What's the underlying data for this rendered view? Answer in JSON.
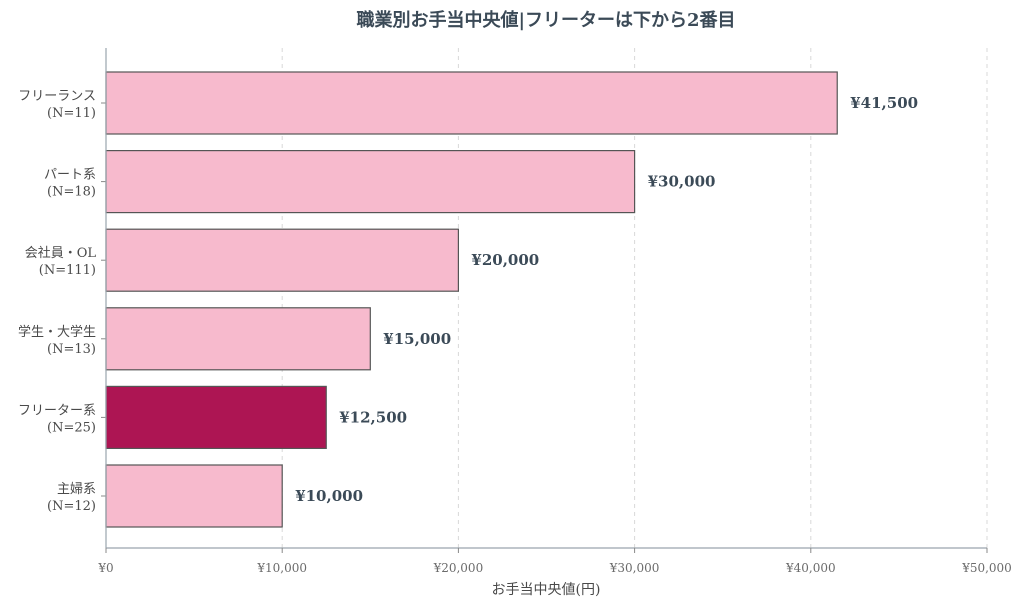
{
  "chart_data": {
    "type": "bar",
    "orientation": "horizontal",
    "title": "職業別お手当中央値|フリーターは下から2番目",
    "xlabel": "お手当中央値(円)",
    "ylabel": "",
    "xlim": [
      0,
      50000
    ],
    "xticks": [
      0,
      10000,
      20000,
      30000,
      40000,
      50000
    ],
    "xtick_labels": [
      "¥0",
      "¥10,000",
      "¥20,000",
      "¥30,000",
      "¥40,000",
      "¥50,000"
    ],
    "grid": "vertical dashed",
    "categories": [
      {
        "name": "フリーランス",
        "n": "(N=11)",
        "value": 41500,
        "label": "¥41,500",
        "color": "#f7bacd",
        "highlight": false
      },
      {
        "name": "パート系",
        "n": "(N=18)",
        "value": 30000,
        "label": "¥30,000",
        "color": "#f7bacd",
        "highlight": false
      },
      {
        "name": "会社員・OL",
        "n": "(N=111)",
        "value": 20000,
        "label": "¥20,000",
        "color": "#f7bacd",
        "highlight": false
      },
      {
        "name": "学生・大学生",
        "n": "(N=13)",
        "value": 15000,
        "label": "¥15,000",
        "color": "#f7bacd",
        "highlight": false
      },
      {
        "name": "フリーター系",
        "n": "(N=25)",
        "value": 12500,
        "label": "¥12,500",
        "color": "#ad1553",
        "highlight": true
      },
      {
        "name": "主婦系",
        "n": "(N=12)",
        "value": 10000,
        "label": "¥10,000",
        "color": "#f7bacd",
        "highlight": false
      }
    ]
  }
}
